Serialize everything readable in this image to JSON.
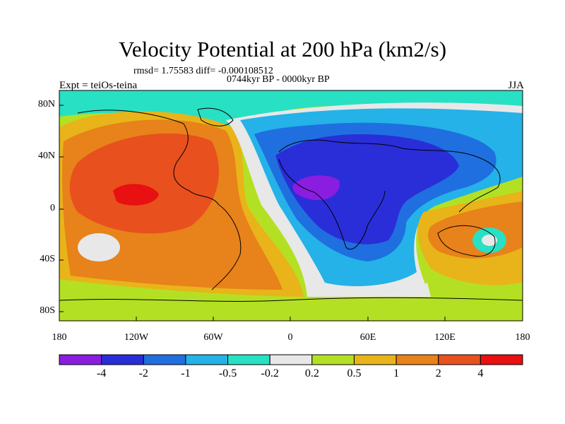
{
  "title": "Velocity Potential at 200 hPa (km2/s)",
  "subtitle_stats": "rmsd= 1.75583 diff= -0.000108512",
  "subtitle_period": "0744kyr BP - 0000kyr BP",
  "left_label": "Expt = teiOs-teina",
  "right_label": "JJA",
  "lat_labels": [
    "80N",
    "40N",
    "0",
    "40S",
    "80S"
  ],
  "lon_labels": [
    "180",
    "120W",
    "60W",
    "0",
    "60E",
    "120E",
    "180"
  ],
  "colorbar": {
    "labels": [
      "-4",
      "-2",
      "-1",
      "-0.5",
      "-0.2",
      "0.2",
      "0.5",
      "1",
      "2",
      "4"
    ],
    "colors": [
      "#8a1de0",
      "#2a2ed8",
      "#1f6fe0",
      "#24b2e8",
      "#28e0c4",
      "#e8e8e8",
      "#b4e024",
      "#e8b41a",
      "#e8821a",
      "#e8501e",
      "#e81010"
    ]
  }
}
